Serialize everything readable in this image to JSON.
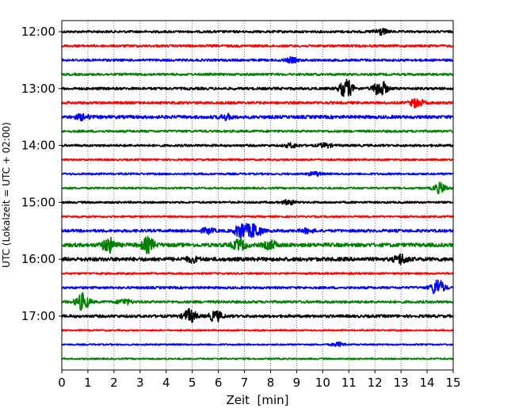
{
  "chart_data": {
    "type": "line",
    "title": "",
    "xlabel": "Zeit  [min]",
    "ylabel": "UTC (Lokalzeit = UTC + 02:00)",
    "xlim": [
      0,
      15
    ],
    "xticks": [
      0,
      1,
      2,
      3,
      4,
      5,
      6,
      7,
      8,
      9,
      10,
      11,
      12,
      13,
      14,
      15
    ],
    "xtick_labels": [
      "0",
      "1",
      "2",
      "3",
      "4",
      "5",
      "6",
      "7",
      "8",
      "9",
      "10",
      "11",
      "12",
      "13",
      "14",
      "15"
    ],
    "ytick_labels": [
      "12:00",
      "13:00",
      "14:00",
      "15:00",
      "16:00",
      "17:00"
    ],
    "ytick_trace_index": [
      0,
      4,
      8,
      12,
      16,
      20
    ],
    "grid": "x-dotted",
    "trace_minutes": 15,
    "colors": [
      "#000000",
      "#ff0000",
      "#0000ff",
      "#008000"
    ],
    "traces": [
      {
        "start": "12:00",
        "color": "#000000",
        "amp": 0.18,
        "events": [
          {
            "t": 12.2,
            "a": 0.5
          }
        ]
      },
      {
        "start": "12:15",
        "color": "#ff0000",
        "amp": 0.18,
        "events": []
      },
      {
        "start": "12:30",
        "color": "#0000ff",
        "amp": 0.18,
        "events": [
          {
            "t": 8.8,
            "a": 0.35
          }
        ]
      },
      {
        "start": "12:45",
        "color": "#008000",
        "amp": 0.18,
        "events": []
      },
      {
        "start": "13:00",
        "color": "#000000",
        "amp": 0.2,
        "events": [
          {
            "t": 10.9,
            "a": 1.4
          },
          {
            "t": 12.2,
            "a": 1.3
          }
        ]
      },
      {
        "start": "13:15",
        "color": "#ff0000",
        "amp": 0.2,
        "events": [
          {
            "t": 13.6,
            "a": 0.7
          }
        ]
      },
      {
        "start": "13:30",
        "color": "#0000ff",
        "amp": 0.25,
        "events": [
          {
            "t": 0.8,
            "a": 0.4
          },
          {
            "t": 6.3,
            "a": 0.35
          }
        ]
      },
      {
        "start": "13:45",
        "color": "#008000",
        "amp": 0.18,
        "events": []
      },
      {
        "start": "14:00",
        "color": "#000000",
        "amp": 0.18,
        "events": [
          {
            "t": 8.8,
            "a": 0.3
          },
          {
            "t": 10.1,
            "a": 0.3
          }
        ]
      },
      {
        "start": "14:15",
        "color": "#ff0000",
        "amp": 0.15,
        "events": []
      },
      {
        "start": "14:30",
        "color": "#0000ff",
        "amp": 0.15,
        "events": [
          {
            "t": 9.7,
            "a": 0.3
          }
        ]
      },
      {
        "start": "14:45",
        "color": "#008000",
        "amp": 0.15,
        "events": [
          {
            "t": 14.5,
            "a": 0.8
          }
        ]
      },
      {
        "start": "15:00",
        "color": "#000000",
        "amp": 0.16,
        "events": [
          {
            "t": 8.7,
            "a": 0.35
          }
        ]
      },
      {
        "start": "15:15",
        "color": "#ff0000",
        "amp": 0.15,
        "events": []
      },
      {
        "start": "15:30",
        "color": "#0000ff",
        "amp": 0.22,
        "events": [
          {
            "t": 6.9,
            "a": 1.3
          },
          {
            "t": 7.4,
            "a": 1.1
          },
          {
            "t": 5.6,
            "a": 0.4
          },
          {
            "t": 9.4,
            "a": 0.3
          }
        ]
      },
      {
        "start": "15:45",
        "color": "#008000",
        "amp": 0.3,
        "events": [
          {
            "t": 1.8,
            "a": 1.1
          },
          {
            "t": 3.3,
            "a": 1.1
          },
          {
            "t": 6.8,
            "a": 0.8
          },
          {
            "t": 8.0,
            "a": 0.6
          }
        ]
      },
      {
        "start": "16:00",
        "color": "#000000",
        "amp": 0.3,
        "events": [
          {
            "t": 13.0,
            "a": 0.7
          },
          {
            "t": 5.0,
            "a": 0.35
          }
        ]
      },
      {
        "start": "16:15",
        "color": "#ff0000",
        "amp": 0.15,
        "events": []
      },
      {
        "start": "16:30",
        "color": "#0000ff",
        "amp": 0.18,
        "events": [
          {
            "t": 14.4,
            "a": 1.3
          }
        ]
      },
      {
        "start": "16:45",
        "color": "#008000",
        "amp": 0.2,
        "events": [
          {
            "t": 0.8,
            "a": 1.3
          },
          {
            "t": 2.4,
            "a": 0.4
          }
        ]
      },
      {
        "start": "17:00",
        "color": "#000000",
        "amp": 0.22,
        "events": [
          {
            "t": 4.9,
            "a": 1.0
          },
          {
            "t": 5.9,
            "a": 0.8
          }
        ]
      },
      {
        "start": "17:15",
        "color": "#ff0000",
        "amp": 0.12,
        "events": []
      },
      {
        "start": "17:30",
        "color": "#0000ff",
        "amp": 0.12,
        "events": [
          {
            "t": 10.6,
            "a": 0.3
          }
        ]
      },
      {
        "start": "17:45",
        "color": "#008000",
        "amp": 0.12,
        "events": []
      }
    ]
  }
}
